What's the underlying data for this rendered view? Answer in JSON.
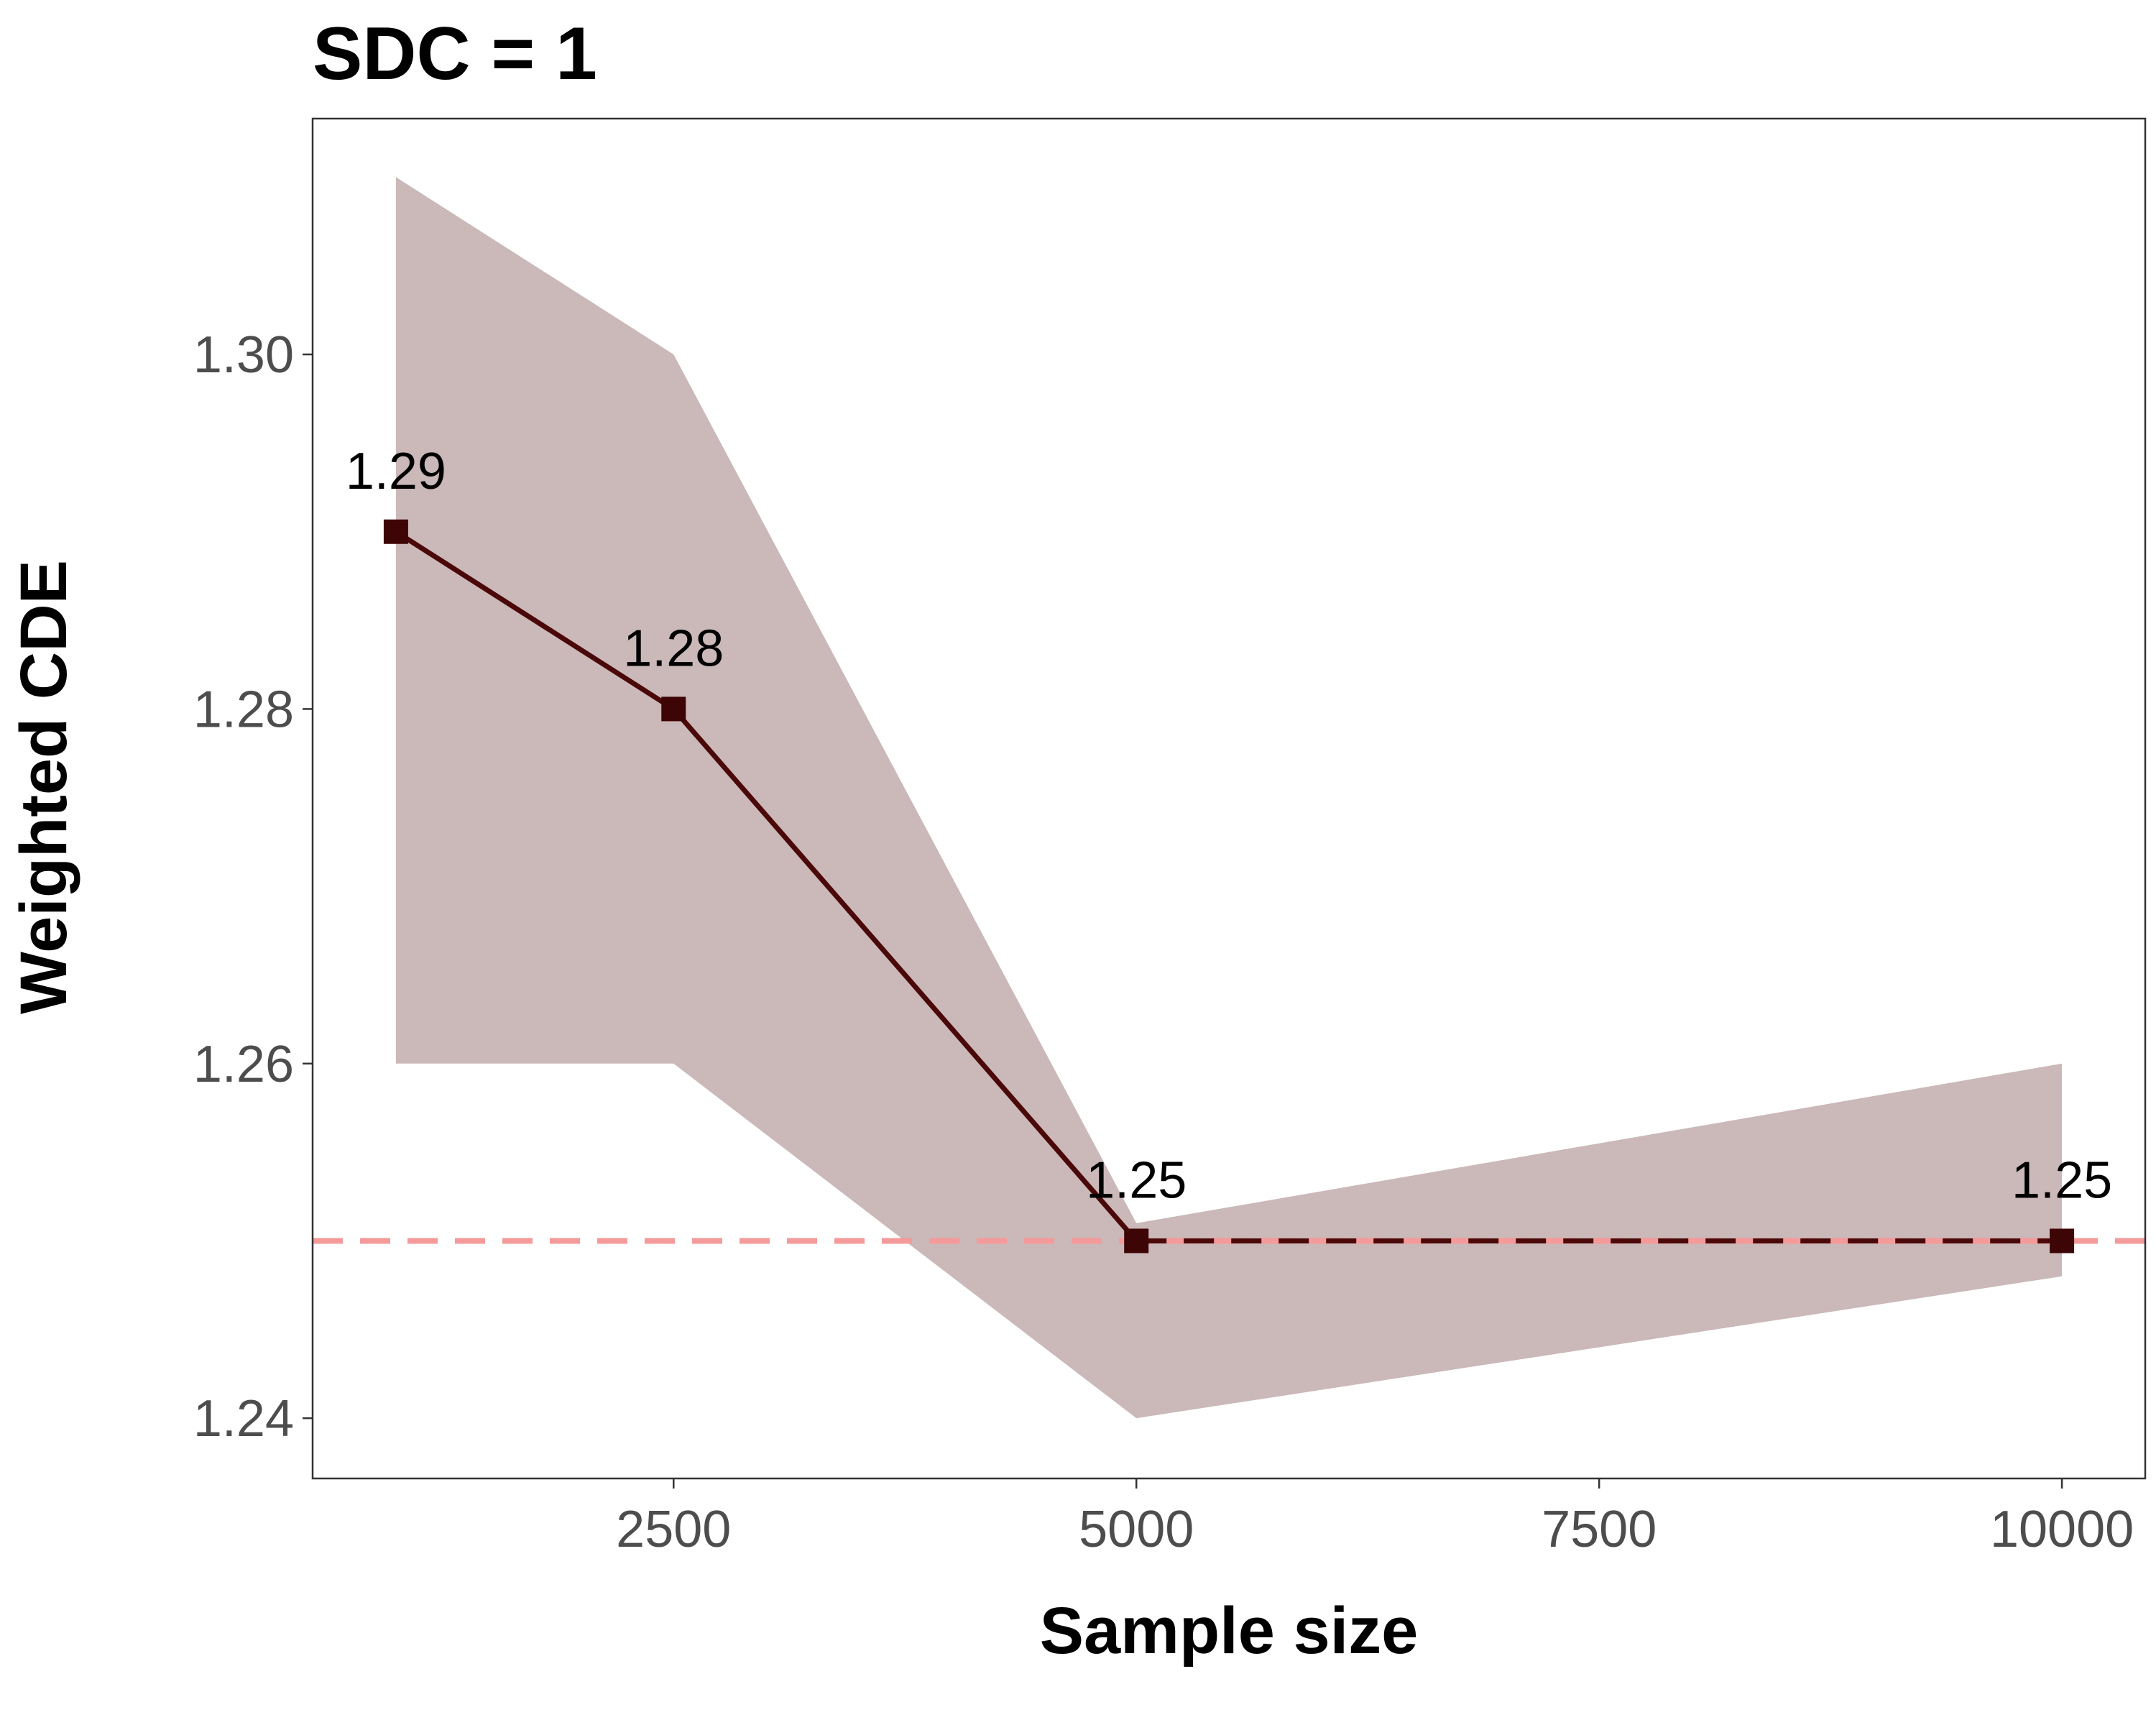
{
  "chart_data": {
    "type": "line",
    "title": "SDC = 1",
    "xlabel": "Sample size",
    "ylabel": "Weighted CDE",
    "x": [
      1000,
      2500,
      5000,
      10000
    ],
    "series": [
      {
        "name": "Weighted CDE",
        "values": [
          1.29,
          1.28,
          1.25,
          1.25
        ],
        "labels": [
          "1.29",
          "1.28",
          "1.25",
          "1.25"
        ],
        "ci_lower": [
          1.26,
          1.26,
          1.24,
          1.248
        ],
        "ci_upper": [
          1.31,
          1.3,
          1.251,
          1.26
        ]
      }
    ],
    "reference_line": {
      "y": 1.25,
      "style": "dashed"
    },
    "xlim": [
      550,
      10450
    ],
    "ylim": [
      1.2366,
      1.3133
    ],
    "xticks": [
      2500,
      5000,
      7500,
      10000
    ],
    "xtick_labels": [
      "2500",
      "5000",
      "7500",
      "10000"
    ],
    "yticks": [
      1.24,
      1.26,
      1.28,
      1.3
    ],
    "ytick_labels": [
      "1.24",
      "1.26",
      "1.28",
      "1.30"
    ],
    "grid": false,
    "colors": {
      "line": "#4a0808",
      "marker": "#3d0505",
      "ribbon": "#cbb8b8",
      "reference": "#f59a9a",
      "panel_border": "#333333"
    }
  }
}
